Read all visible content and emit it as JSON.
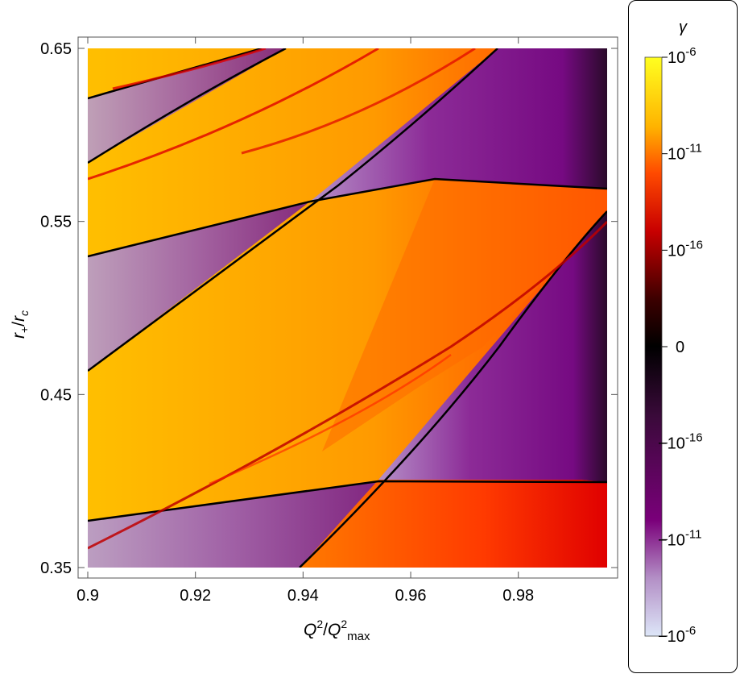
{
  "chart_data": {
    "type": "heatmap",
    "xlabel": "Q^2/Q^2_max",
    "ylabel": "r_+/r_c",
    "xlim": [
      0.9,
      0.9965
    ],
    "ylim": [
      0.35,
      0.65
    ],
    "x_ticks": [
      0.9,
      0.92,
      0.94,
      0.96,
      0.98
    ],
    "x_tick_labels": [
      "0.9",
      "0.92",
      "0.94",
      "0.96",
      "0.98"
    ],
    "y_ticks": [
      0.35,
      0.45,
      0.55,
      0.65
    ],
    "y_tick_labels": [
      "0.35",
      "0.45",
      "0.55",
      "0.65"
    ],
    "colorbar": {
      "title": "γ",
      "scale": "symmetric-log",
      "tick_labels": [
        "10^-6",
        "10^-11",
        "10^-16",
        "0",
        "−10^-16",
        "−10^-11",
        "−10^-6"
      ],
      "colors_top_to_bottom": [
        "#ffff20",
        "#ffa500",
        "#ff1a00",
        "#a00000",
        "#000000",
        "#3a0a3a",
        "#7a007a",
        "#b38fc6",
        "#dde6f8"
      ]
    },
    "positive_color": "#ffa500",
    "negative_color": "#8a3a9a"
  }
}
